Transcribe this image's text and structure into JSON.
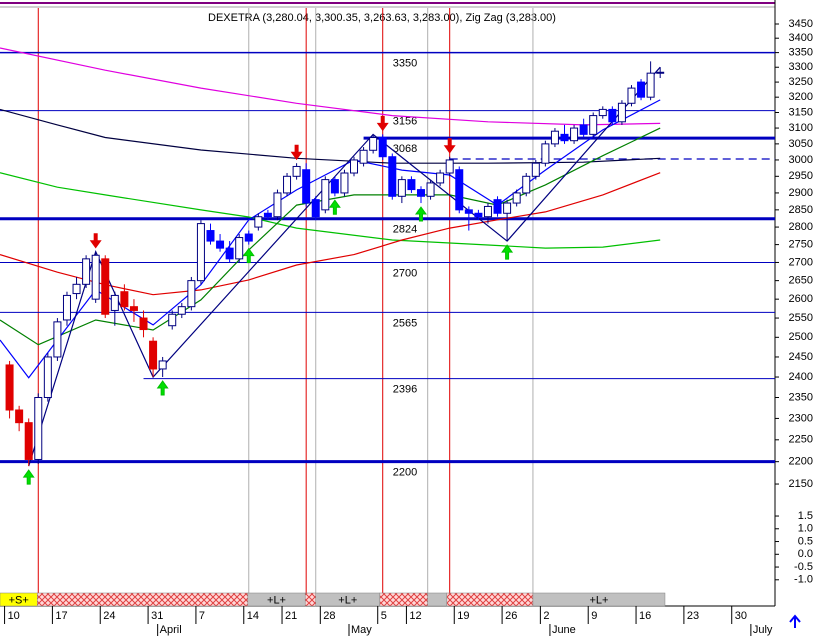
{
  "chart_data": {
    "type": "candlestick",
    "title": "DEXETRA (3,280.04, 3,300.35, 3,263.63, 3,283.00), Zig Zag (3,283.00)",
    "log_scale": true,
    "xlim": [
      -1,
      80
    ],
    "ylim": [
      2115,
      3500
    ],
    "yticks": [
      3450,
      3400,
      3350,
      3300,
      3250,
      3200,
      3150,
      3100,
      3050,
      3000,
      2950,
      2900,
      2850,
      2800,
      2750,
      2700,
      2650,
      2600,
      2550,
      2500,
      2450,
      2400,
      2350,
      2300,
      2250,
      2200,
      2150
    ],
    "xticks": [
      {
        "value": 0,
        "label": "10"
      },
      {
        "value": 5,
        "label": "17"
      },
      {
        "value": 10,
        "label": "24"
      },
      {
        "value": 15,
        "label": "31"
      },
      {
        "value": 20,
        "label": "7"
      },
      {
        "value": 25,
        "label": "14"
      },
      {
        "value": 29,
        "label": "21"
      },
      {
        "value": 33,
        "label": "28"
      },
      {
        "value": 39,
        "label": "5"
      },
      {
        "value": 42,
        "label": "12"
      },
      {
        "value": 47,
        "label": "19"
      },
      {
        "value": 52,
        "label": "26"
      },
      {
        "value": 56,
        "label": "2"
      },
      {
        "value": 61,
        "label": "9"
      },
      {
        "value": 66,
        "label": "16"
      },
      {
        "value": 71,
        "label": "23"
      },
      {
        "value": 76,
        "label": "30"
      }
    ],
    "months": [
      {
        "value": 16,
        "label": "April"
      },
      {
        "value": 36,
        "label": "May"
      },
      {
        "value": 57,
        "label": "June"
      },
      {
        "value": 78,
        "label": "July"
      }
    ],
    "up_color": "#000080",
    "candles": [
      {
        "color": "#e00000",
        "ohlc": [
          [
            0,
            2430,
            2440,
            2300,
            2320
          ],
          [
            1,
            2320,
            2330,
            2270,
            2290
          ],
          [
            2,
            2290,
            2300,
            2190,
            2205
          ],
          [
            3,
            2205,
            2360,
            2195,
            2350
          ],
          [
            4,
            2350,
            2460,
            2340,
            2450
          ],
          [
            5,
            2450,
            2550,
            2440,
            2540
          ],
          [
            6,
            2545,
            2620,
            2530,
            2610
          ],
          [
            7,
            2615,
            2660,
            2600,
            2640
          ],
          [
            8,
            2640,
            2720,
            2630,
            2710
          ],
          [
            9,
            2600,
            2730,
            2590,
            2720
          ],
          [
            10,
            2710,
            2720,
            2550,
            2560
          ],
          [
            11,
            2570,
            2620,
            2530,
            2610
          ],
          [
            12,
            2620,
            2640,
            2570,
            2580
          ],
          [
            13,
            2580,
            2600,
            2540,
            2570
          ],
          [
            14,
            2550,
            2570,
            2500,
            2520
          ],
          [
            15,
            2490,
            2500,
            2400,
            2420
          ],
          [
            16,
            2420,
            2450,
            2400,
            2440
          ],
          [
            17,
            2530,
            2570,
            2520,
            2560
          ],
          [
            18,
            2560,
            2590,
            2550,
            2580
          ],
          [
            19,
            2580,
            2660,
            2570,
            2650
          ]
        ]
      },
      {
        "color": "#0000ff",
        "ohlc": [
          [
            20,
            2650,
            2820,
            2640,
            2810
          ],
          [
            21,
            2790,
            2810,
            2750,
            2760
          ],
          [
            22,
            2760,
            2780,
            2730,
            2740
          ],
          [
            23,
            2740,
            2760,
            2700,
            2710
          ],
          [
            24,
            2710,
            2780,
            2700,
            2770
          ],
          [
            25,
            2780,
            2790,
            2750,
            2760
          ],
          [
            26,
            2800,
            2840,
            2790,
            2830
          ],
          [
            27,
            2840,
            2850,
            2820,
            2830
          ],
          [
            28,
            2830,
            2910,
            2820,
            2900
          ],
          [
            29,
            2900,
            2960,
            2890,
            2950
          ],
          [
            30,
            2950,
            2990,
            2940,
            2980
          ],
          [
            31,
            2970,
            2990,
            2860,
            2870
          ],
          [
            32,
            2880,
            2890,
            2820,
            2830
          ],
          [
            33,
            2850,
            2950,
            2840,
            2940
          ],
          [
            34,
            2940,
            2950,
            2890,
            2900
          ],
          [
            35,
            2900,
            2970,
            2890,
            2960
          ],
          [
            36,
            2960,
            3010,
            2950,
            3000
          ],
          [
            37,
            2990,
            3040,
            2980,
            3030
          ],
          [
            38,
            3030,
            3080,
            3020,
            3070
          ],
          [
            39,
            3070,
            3080,
            3000,
            3010
          ],
          [
            40,
            3010,
            3020,
            2880,
            2890
          ],
          [
            41,
            2890,
            2950,
            2870,
            2940
          ],
          [
            42,
            2940,
            2950,
            2900,
            2910
          ],
          [
            43,
            2910,
            2920,
            2870,
            2890
          ],
          [
            44,
            2890,
            2940,
            2880,
            2930
          ],
          [
            45,
            2930,
            2970,
            2920,
            2960
          ],
          [
            46,
            2960,
            3010,
            2950,
            3000
          ],
          [
            47,
            2970,
            2980,
            2840,
            2850
          ],
          [
            48,
            2850,
            2860,
            2790,
            2840
          ],
          [
            49,
            2840,
            2850,
            2820,
            2830
          ],
          [
            50,
            2830,
            2870,
            2810,
            2860
          ],
          [
            51,
            2880,
            2890,
            2830,
            2840
          ],
          [
            52,
            2840,
            2880,
            2760,
            2870
          ],
          [
            53,
            2870,
            2910,
            2860,
            2900
          ],
          [
            54,
            2900,
            2960,
            2890,
            2950
          ],
          [
            55,
            2950,
            3000,
            2940,
            2990
          ],
          [
            56,
            2990,
            3060,
            2980,
            3050
          ],
          [
            57,
            3050,
            3100,
            3040,
            3090
          ],
          [
            58,
            3080,
            3110,
            3050,
            3060
          ],
          [
            59,
            3060,
            3110,
            3050,
            3100
          ],
          [
            60,
            3110,
            3130,
            3070,
            3080
          ],
          [
            61,
            3080,
            3150,
            3070,
            3140
          ],
          [
            62,
            3140,
            3170,
            3130,
            3160
          ],
          [
            63,
            3160,
            3170,
            3110,
            3120
          ],
          [
            64,
            3120,
            3190,
            3110,
            3180
          ],
          [
            65,
            3180,
            3240,
            3170,
            3230
          ],
          [
            66,
            3250,
            3260,
            3190,
            3200
          ],
          [
            67,
            3200,
            3320,
            3190,
            3280
          ],
          [
            68,
            3280.04,
            3300.35,
            3263.63,
            3283.0
          ]
        ]
      }
    ],
    "lines": [
      {
        "color": "#e000e0",
        "x": [
          -1,
          10,
          20,
          30,
          40,
          50,
          60,
          68
        ],
        "values": [
          3366,
          3290,
          3230,
          3180,
          3140,
          3120,
          3110,
          3115
        ]
      },
      {
        "color": "#000040",
        "x": [
          -1,
          5,
          10,
          20,
          30,
          40,
          50,
          60,
          68
        ],
        "values": [
          3160,
          3110,
          3070,
          3031,
          3005,
          2990,
          2990,
          2993,
          3005
        ]
      },
      {
        "color": "#00c000",
        "x": [
          -1,
          5,
          10,
          20,
          25,
          30,
          40,
          50,
          56,
          62,
          68
        ],
        "values": [
          2961,
          2917,
          2894,
          2850,
          2829,
          2797,
          2763,
          2749,
          2740,
          2743,
          2763
        ]
      },
      {
        "color": "#e00000",
        "x": [
          -1,
          5,
          10,
          15,
          20,
          25,
          30,
          36,
          41,
          46,
          51,
          56,
          62,
          68
        ],
        "values": [
          2722,
          2673,
          2639,
          2612,
          2625,
          2652,
          2693,
          2722,
          2763,
          2797,
          2821,
          2844,
          2894,
          2961
        ]
      },
      {
        "color": "#008000",
        "x": [
          -1,
          3,
          9,
          15,
          20,
          25,
          30,
          36,
          41,
          46,
          51,
          56,
          62,
          68
        ],
        "values": [
          2545,
          2481,
          2545,
          2519,
          2598,
          2735,
          2864,
          2894,
          2894,
          2894,
          2864,
          2924,
          3013,
          3100
        ]
      },
      {
        "color": "#0000ff",
        "x": [
          -1,
          2,
          5,
          9,
          15,
          20,
          25,
          30,
          36,
          41,
          46,
          51,
          56,
          62,
          68
        ],
        "values": [
          2493,
          2398,
          2493,
          2625,
          2532,
          2639,
          2821,
          2909,
          3000,
          2969,
          2954,
          2864,
          2969,
          3094,
          3191
        ]
      },
      {
        "color": "#000080",
        "x": [
          2,
          9,
          15,
          38,
          52,
          68
        ],
        "values": [
          2190,
          2730,
          2400,
          3080,
          2760,
          3300
        ]
      }
    ],
    "levels": [
      {
        "value": 3350,
        "from": -1,
        "width": 1.5
      },
      {
        "value": 3156,
        "from": -1,
        "width": 1
      },
      {
        "value": 3068,
        "from": 37,
        "width": 3
      },
      {
        "value": 2824,
        "from": -1,
        "width": 3
      },
      {
        "value": 2700,
        "from": -1,
        "width": 1
      },
      {
        "value": 2565,
        "from": -1,
        "width": 1
      },
      {
        "value": 2396,
        "from": 14,
        "width": 1
      },
      {
        "value": 2200,
        "from": -1,
        "width": 3
      }
    ],
    "dashed_level": {
      "value": 3003,
      "from": 46
    },
    "level_color": "#0000c0",
    "cycle_lines": [
      {
        "color": "#e00000",
        "x": [
          3,
          31,
          39,
          46
        ]
      },
      {
        "color": "#b0b0b0",
        "x": [
          25,
          32,
          43.7,
          54.7
        ]
      }
    ],
    "sell_signals": [
      9,
      30,
      39,
      46
    ],
    "buy_signals": [
      2,
      16,
      25,
      34,
      43,
      52
    ],
    "indicator": {
      "ylim": [
        -1.4,
        2.05
      ],
      "yticks": [
        1.5,
        {
          "value": 1,
          "label": "1.0"
        },
        0.5,
        {
          "value": 0,
          "label": "0.0"
        },
        -0.5,
        {
          "value": -1,
          "label": "-1.0"
        }
      ]
    },
    "bands": [
      {
        "from": -1,
        "to": 2.9,
        "label": "+S+",
        "color": "#ffff00"
      },
      {
        "from": 2.9,
        "to": 24.9,
        "pattern": "hatch"
      },
      {
        "from": 24.9,
        "to": 30.9,
        "label": "+L+",
        "color": "#c0c0c0"
      },
      {
        "from": 30.9,
        "to": 32,
        "pattern": "hatch"
      },
      {
        "from": 32,
        "to": 38.7,
        "label": "+L+",
        "color": "#c0c0c0"
      },
      {
        "from": 38.7,
        "to": 43.7,
        "pattern": "hatch"
      },
      {
        "from": 43.7,
        "to": 45.7,
        "color": "#c0c0c0"
      },
      {
        "from": 45.7,
        "to": 54.7,
        "pattern": "hatch"
      },
      {
        "from": 54.7,
        "to": 68.5,
        "label": "+L+",
        "color": "#c0c0c0"
      }
    ]
  }
}
